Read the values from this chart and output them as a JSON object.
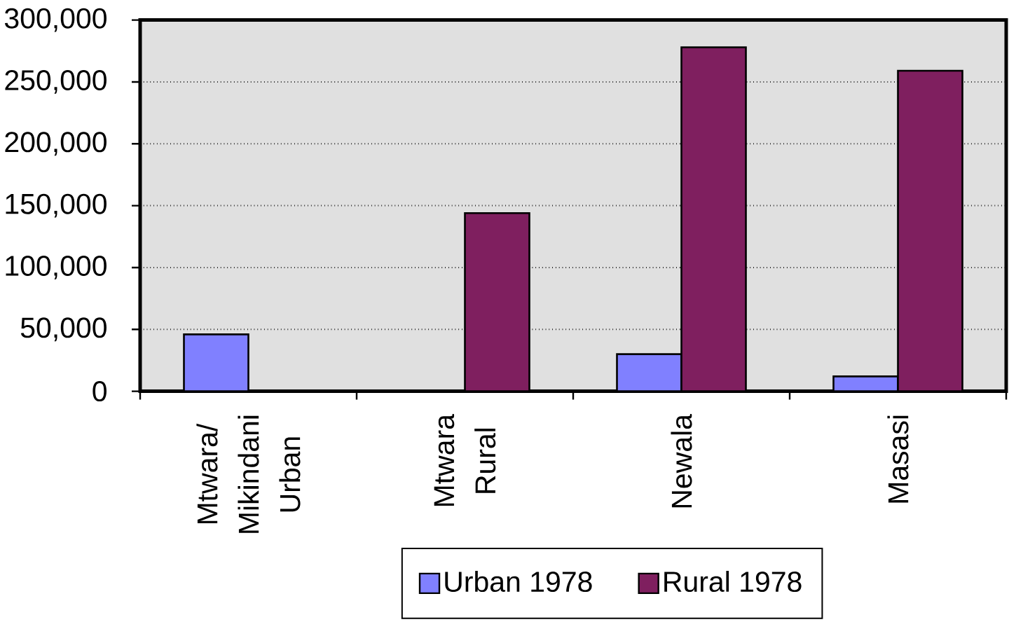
{
  "chart_data": {
    "type": "bar",
    "categories": [
      "Mtwara/ Mikindani Urban",
      "Mtwara Rural",
      "Newala",
      "Masasi"
    ],
    "series": [
      {
        "name": "Urban 1978",
        "color": "#8080ff",
        "values": [
          46000,
          null,
          30000,
          12000
        ]
      },
      {
        "name": "Rural 1978",
        "color": "#7f1f5f",
        "values": [
          null,
          144000,
          278000,
          259000
        ]
      }
    ],
    "ylim": [
      0,
      300000
    ],
    "yticks": [
      0,
      {
        "value": 50000,
        "label": "50,000"
      },
      {
        "value": 100000,
        "label": "100,000"
      },
      {
        "value": 150000,
        "label": "150,000"
      },
      {
        "value": 200000,
        "label": "200,000"
      },
      {
        "value": 250000,
        "label": "250,000"
      },
      {
        "value": 300000,
        "label": "300,000"
      }
    ],
    "grid": "y",
    "legend": "bottom"
  }
}
